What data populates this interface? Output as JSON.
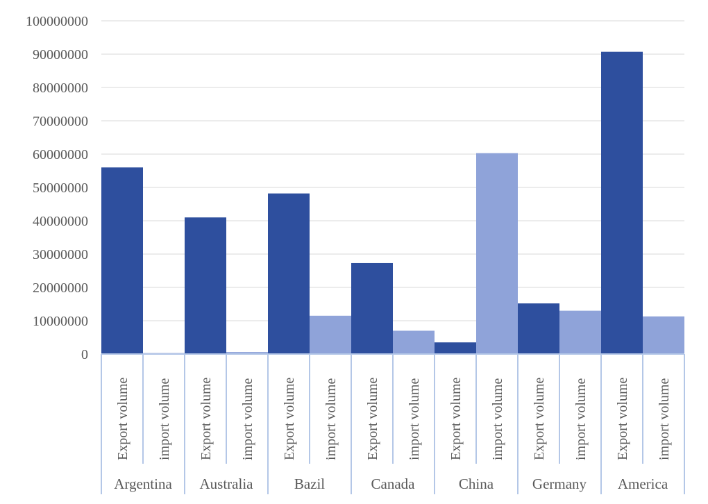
{
  "chart_data": {
    "type": "bar",
    "title": "",
    "xlabel": "",
    "ylabel": "",
    "ylim": [
      0,
      100000000
    ],
    "yticks": [
      0,
      10000000,
      20000000,
      30000000,
      40000000,
      50000000,
      60000000,
      70000000,
      80000000,
      90000000,
      100000000
    ],
    "grid": true,
    "legend": "none",
    "groups": [
      {
        "name": "Argentina",
        "bars": [
          {
            "label": "Export volume",
            "value": 56000000,
            "color": "#2e4f9e"
          },
          {
            "label": "import volume",
            "value": 300000,
            "color": "#8fa3d9"
          }
        ]
      },
      {
        "name": "Australia",
        "bars": [
          {
            "label": "Export volume",
            "value": 41000000,
            "color": "#2e4f9e"
          },
          {
            "label": "import volume",
            "value": 600000,
            "color": "#8fa3d9"
          }
        ]
      },
      {
        "name": "Bazil",
        "bars": [
          {
            "label": "Export volume",
            "value": 48200000,
            "color": "#2e4f9e"
          },
          {
            "label": "import volume",
            "value": 11500000,
            "color": "#8fa3d9"
          }
        ]
      },
      {
        "name": "Canada",
        "bars": [
          {
            "label": "Export volume",
            "value": 27300000,
            "color": "#2e4f9e"
          },
          {
            "label": "import volume",
            "value": 7000000,
            "color": "#8fa3d9"
          }
        ]
      },
      {
        "name": "China",
        "bars": [
          {
            "label": "Export volume",
            "value": 3500000,
            "color": "#2e4f9e"
          },
          {
            "label": "import volume",
            "value": 60300000,
            "color": "#8fa3d9"
          }
        ]
      },
      {
        "name": "Germany",
        "bars": [
          {
            "label": "Export volume",
            "value": 15200000,
            "color": "#2e4f9e"
          },
          {
            "label": "import volume",
            "value": 13000000,
            "color": "#8fa3d9"
          }
        ]
      },
      {
        "name": "America",
        "bars": [
          {
            "label": "Export volume",
            "value": 90700000,
            "color": "#2e4f9e"
          },
          {
            "label": "import volume",
            "value": 11300000,
            "color": "#8fa3d9"
          }
        ]
      }
    ]
  }
}
